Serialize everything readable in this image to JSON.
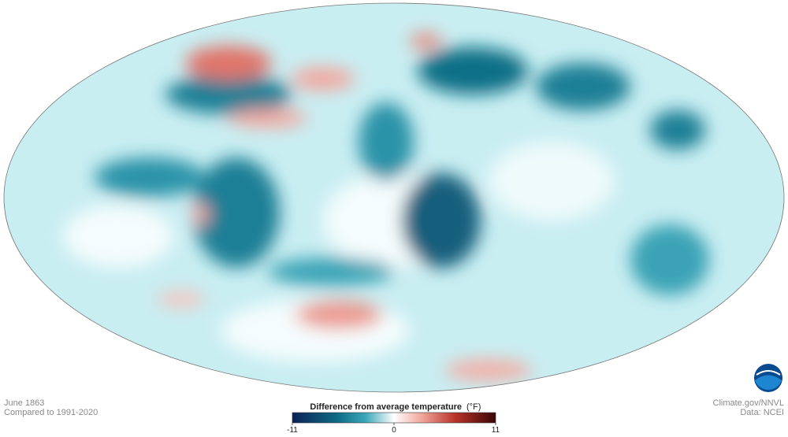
{
  "caption": {
    "date": "June 1863",
    "baseline": "Compared to 1991-2020"
  },
  "credits": {
    "source": "Climate.gov/NNVL",
    "data": "Data: NCEI"
  },
  "legend": {
    "title": "Difference from average temperature",
    "unit": "(°F)",
    "ticks": [
      -11,
      0,
      11
    ]
  }
}
